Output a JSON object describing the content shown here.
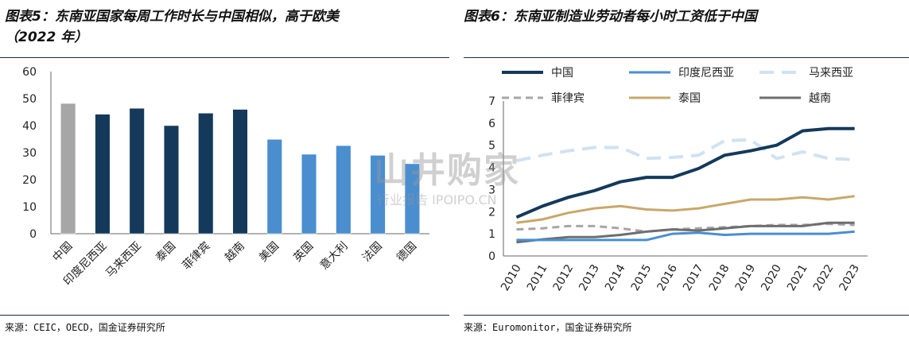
{
  "left": {
    "title_line1": "图表5：东南亚国家每周工作时长与中国相似，高于欧美",
    "title_line2": "（2022 年）",
    "source": "来源：CEIC，OECD，国金证券研究所"
  },
  "right": {
    "title": "图表6：东南亚制造业劳动者每小时工资低于中国",
    "source": "来源：Euromonitor，国金证券研究所"
  },
  "watermark": {
    "main": "山井购家",
    "sub": "行业报告 IPOIPO.CN"
  },
  "chart_data": [
    {
      "type": "bar",
      "categories": [
        "中国",
        "印度尼西亚",
        "马来西亚",
        "泰国",
        "菲律宾",
        "越南",
        "美国",
        "英国",
        "意大利",
        "法国",
        "德国"
      ],
      "values": [
        48.2,
        44.2,
        46.4,
        40.0,
        44.6,
        46.0,
        34.9,
        29.4,
        32.6,
        29.0,
        25.9
      ],
      "bar_colors": [
        "#a6a6a6",
        "#14395b",
        "#14395b",
        "#14395b",
        "#14395b",
        "#14395b",
        "#4a8ed0",
        "#4a8ed0",
        "#4a8ed0",
        "#4a8ed0",
        "#4a8ed0"
      ],
      "ylim": [
        0,
        60
      ],
      "yticks": [
        0,
        10,
        20,
        30,
        40,
        50,
        60
      ],
      "grid": false,
      "title": "",
      "xlabel": "",
      "ylabel": ""
    },
    {
      "type": "line",
      "x": [
        "2010",
        "2011",
        "2012",
        "2013",
        "2014",
        "2015",
        "2016",
        "2017",
        "2018",
        "2019",
        "2020",
        "2021",
        "2022",
        "2023"
      ],
      "ylim": [
        0,
        7
      ],
      "yticks": [
        0,
        1,
        2,
        3,
        4,
        5,
        6,
        7
      ],
      "grid": false,
      "legend_position": "top",
      "series": [
        {
          "name": "中国",
          "color": "#14395b",
          "dash": "solid",
          "width": 4,
          "values": [
            1.75,
            2.25,
            2.65,
            2.95,
            3.35,
            3.55,
            3.55,
            3.95,
            4.55,
            4.75,
            5.0,
            5.65,
            5.75,
            5.75
          ]
        },
        {
          "name": "印度尼西亚",
          "color": "#4a8ed0",
          "dash": "solid",
          "width": 3,
          "values": [
            0.72,
            0.72,
            0.72,
            0.72,
            0.72,
            0.72,
            1.0,
            1.05,
            0.95,
            1.0,
            1.0,
            1.0,
            1.0,
            1.1
          ]
        },
        {
          "name": "马来西亚",
          "color": "#d0e2f2",
          "dash": "longdash",
          "width": 4,
          "values": [
            4.3,
            4.55,
            4.75,
            4.9,
            4.9,
            4.4,
            4.45,
            4.55,
            5.2,
            5.25,
            4.4,
            4.7,
            4.4,
            4.35
          ]
        },
        {
          "name": "菲律宾",
          "color": "#a6a6a6",
          "dash": "dash",
          "width": 3,
          "values": [
            1.2,
            1.25,
            1.35,
            1.35,
            1.25,
            1.1,
            1.2,
            1.25,
            1.3,
            1.35,
            1.4,
            1.4,
            1.45,
            1.4
          ]
        },
        {
          "name": "泰国",
          "color": "#c8a86a",
          "dash": "solid",
          "width": 3,
          "values": [
            1.5,
            1.65,
            1.95,
            2.15,
            2.25,
            2.1,
            2.05,
            2.15,
            2.35,
            2.55,
            2.55,
            2.65,
            2.55,
            2.7
          ]
        },
        {
          "name": "越南",
          "color": "#6e6e6e",
          "dash": "solid",
          "width": 3,
          "values": [
            0.62,
            0.75,
            0.85,
            0.85,
            0.95,
            1.1,
            1.2,
            1.15,
            1.25,
            1.35,
            1.35,
            1.35,
            1.5,
            1.5
          ]
        }
      ],
      "title": "",
      "xlabel": "",
      "ylabel": ""
    }
  ]
}
